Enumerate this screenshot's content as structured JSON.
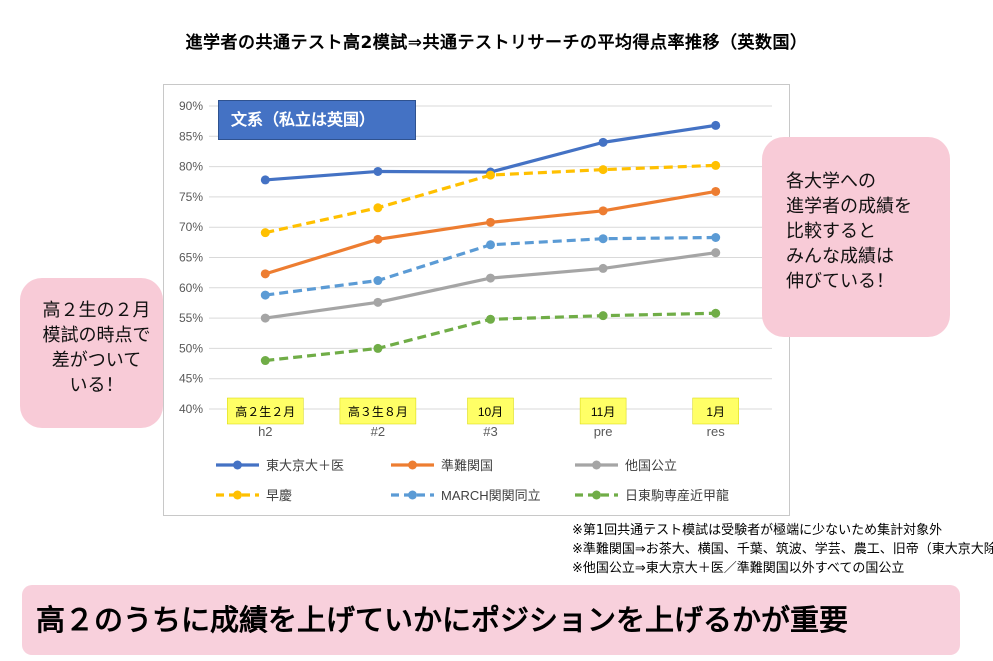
{
  "title": "進学者の共通テスト高2模試⇒共通テストリサーチの平均得点率推移（英数国）",
  "chart_data": {
    "type": "line",
    "panel_label": "文系（私立は英国）",
    "categories": [
      "h2",
      "#2",
      "#3",
      "pre",
      "res"
    ],
    "category_tags": [
      "高２生２月",
      "高３生８月",
      "10月",
      "11月",
      "1月"
    ],
    "y_tick_labels": [
      "40%",
      "45%",
      "50%",
      "55%",
      "60%",
      "65%",
      "70%",
      "75%",
      "80%",
      "85%",
      "90%"
    ],
    "ylim": [
      40,
      90
    ],
    "grid": true,
    "legend_position": "bottom",
    "series": [
      {
        "name": "東大京大＋医",
        "values": [
          77.8,
          79.2,
          79.1,
          84.0,
          86.8
        ],
        "color": "#4472c4",
        "dashed": false
      },
      {
        "name": "準難関国",
        "values": [
          62.3,
          68.0,
          70.8,
          72.7,
          75.9
        ],
        "color": "#ed7d31",
        "dashed": false
      },
      {
        "name": "他国公立",
        "values": [
          55.0,
          57.6,
          61.6,
          63.2,
          65.8
        ],
        "color": "#a5a5a5",
        "dashed": false
      },
      {
        "name": "早慶",
        "values": [
          69.1,
          73.2,
          78.6,
          79.5,
          80.2
        ],
        "color": "#ffc000",
        "dashed": true
      },
      {
        "name": "MARCH関関同立",
        "values": [
          58.8,
          61.2,
          67.1,
          68.1,
          68.3
        ],
        "color": "#5b9bd5",
        "dashed": true
      },
      {
        "name": "日東駒専産近甲龍",
        "values": [
          48.0,
          50.0,
          54.8,
          55.4,
          55.8
        ],
        "color": "#70ad47",
        "dashed": true
      }
    ]
  },
  "callouts": {
    "right": [
      "各大学への",
      "進学者の成績を",
      "比較すると",
      "みんな成績は",
      "伸びている！"
    ],
    "left": [
      "高２生の２月",
      "模試の時点で",
      "差がついて",
      "いる！"
    ]
  },
  "notes": [
    "※第1回共通テスト模試は受験者が極端に少ないため集計対象外",
    "※準難関国⇒お茶大、横国、千葉、筑波、学芸、農工、旧帝（東大京大除く）",
    "※他国公立⇒東大京大＋医／準難関国以外すべての国公立"
  ],
  "banner": "高２のうちに成績を上げていかにポジションを上げるかが重要"
}
